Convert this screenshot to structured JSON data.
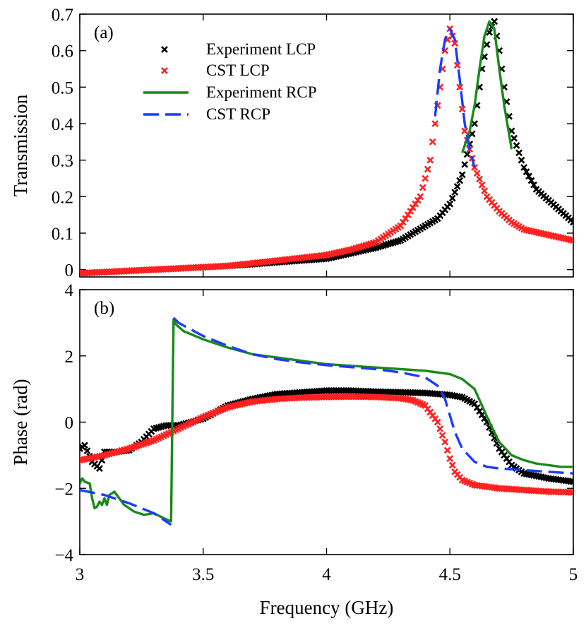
{
  "chart_data": [
    {
      "id": "a",
      "type": "scatter",
      "panel_label": "(a)",
      "ylabel": "Transmission",
      "xlabel": "",
      "xlim": [
        3,
        5
      ],
      "ylim": [
        -0.02,
        0.7
      ],
      "y_ticks": [
        0,
        0.1,
        0.2,
        0.3,
        0.4,
        0.5,
        0.6,
        0.7
      ],
      "y_tick_labels": [
        "0",
        "0.1",
        "0.2",
        "0.3",
        "0.4",
        "0.5",
        "0.6",
        "0.7"
      ],
      "x_ticks": [
        3,
        3.5,
        4,
        4.5,
        5
      ],
      "legend_position": "upper-left",
      "series": [
        {
          "name": "Experiment LCP",
          "style": "x-markers",
          "color": "#000000",
          "x": [
            3.0,
            3.3,
            3.6,
            3.8,
            4.0,
            4.1,
            4.2,
            4.3,
            4.4,
            4.45,
            4.5,
            4.55,
            4.6,
            4.63,
            4.66,
            4.68,
            4.7,
            4.72,
            4.75,
            4.8,
            4.85,
            4.9,
            4.95,
            5.0
          ],
          "y": [
            -0.01,
            0.0,
            0.01,
            0.02,
            0.03,
            0.045,
            0.06,
            0.08,
            0.12,
            0.14,
            0.18,
            0.26,
            0.4,
            0.55,
            0.65,
            0.68,
            0.6,
            0.5,
            0.38,
            0.28,
            0.22,
            0.19,
            0.16,
            0.13
          ]
        },
        {
          "name": "CST LCP",
          "style": "x-markers",
          "color": "#ff2020",
          "x": [
            3.0,
            3.3,
            3.6,
            3.8,
            4.0,
            4.1,
            4.2,
            4.3,
            4.38,
            4.42,
            4.45,
            4.48,
            4.5,
            4.52,
            4.54,
            4.56,
            4.6,
            4.65,
            4.7,
            4.75,
            4.8,
            4.9,
            5.0
          ],
          "y": [
            -0.01,
            0.0,
            0.01,
            0.025,
            0.04,
            0.055,
            0.075,
            0.12,
            0.2,
            0.3,
            0.45,
            0.6,
            0.66,
            0.62,
            0.5,
            0.38,
            0.28,
            0.2,
            0.16,
            0.13,
            0.11,
            0.095,
            0.08
          ]
        },
        {
          "name": "Experiment RCP",
          "style": "solid",
          "color": "#1a8a1a",
          "x": [
            4.55,
            4.58,
            4.6,
            4.62,
            4.64,
            4.66,
            4.68,
            4.7,
            4.72,
            4.75
          ],
          "y": [
            0.32,
            0.38,
            0.45,
            0.55,
            0.64,
            0.68,
            0.66,
            0.55,
            0.45,
            0.33
          ]
        },
        {
          "name": "CST RCP",
          "style": "dashed",
          "color": "#1c3cff",
          "x": [
            4.44,
            4.46,
            4.48,
            4.5,
            4.52,
            4.54,
            4.56,
            4.58,
            4.6
          ],
          "y": [
            0.42,
            0.55,
            0.63,
            0.66,
            0.63,
            0.52,
            0.4,
            0.33,
            0.28
          ]
        }
      ]
    },
    {
      "id": "b",
      "type": "scatter",
      "panel_label": "(b)",
      "ylabel": "Phase (rad)",
      "xlabel": "Frequency (GHz)",
      "xlim": [
        3,
        5
      ],
      "ylim": [
        -4,
        4
      ],
      "y_ticks": [
        -4,
        -2,
        0,
        2,
        4
      ],
      "y_tick_labels": [
        "−4",
        "−2",
        "0",
        "2",
        "4"
      ],
      "x_ticks": [
        3,
        3.5,
        4,
        4.5,
        5
      ],
      "x_tick_labels": [
        "3",
        "3.5",
        "4",
        "4.5",
        "5"
      ],
      "series": [
        {
          "name": "Experiment LCP",
          "style": "x-markers",
          "color": "#000000",
          "x": [
            3.0,
            3.02,
            3.05,
            3.08,
            3.1,
            3.15,
            3.2,
            3.25,
            3.3,
            3.35,
            3.4,
            3.5,
            3.6,
            3.7,
            3.8,
            3.9,
            4.0,
            4.1,
            4.2,
            4.3,
            4.4,
            4.45,
            4.5,
            4.55,
            4.6,
            4.65,
            4.7,
            4.75,
            4.8,
            4.9,
            5.0
          ],
          "y": [
            -0.8,
            -0.7,
            -1.2,
            -1.4,
            -0.9,
            -0.9,
            -0.85,
            -0.6,
            -0.2,
            -0.1,
            -0.1,
            0.1,
            0.5,
            0.7,
            0.85,
            0.9,
            0.95,
            0.95,
            0.92,
            0.9,
            0.88,
            0.85,
            0.82,
            0.75,
            0.55,
            0.0,
            -0.8,
            -1.3,
            -1.55,
            -1.7,
            -1.8
          ]
        },
        {
          "name": "CST LCP",
          "style": "x-markers",
          "color": "#ff2020",
          "x": [
            3.0,
            3.1,
            3.2,
            3.3,
            3.4,
            3.5,
            3.6,
            3.7,
            3.8,
            3.9,
            4.0,
            4.1,
            4.2,
            4.3,
            4.35,
            4.4,
            4.45,
            4.48,
            4.5,
            4.52,
            4.55,
            4.6,
            4.7,
            4.8,
            4.9,
            5.0
          ],
          "y": [
            -1.15,
            -1.0,
            -0.8,
            -0.55,
            -0.2,
            0.15,
            0.45,
            0.62,
            0.7,
            0.74,
            0.76,
            0.77,
            0.76,
            0.72,
            0.66,
            0.5,
            0.0,
            -0.6,
            -1.1,
            -1.5,
            -1.75,
            -1.9,
            -2.0,
            -2.05,
            -2.1,
            -2.12
          ]
        },
        {
          "name": "Experiment RCP",
          "style": "solid",
          "color": "#1a8a1a",
          "x": [
            3.0,
            3.01,
            3.02,
            3.04,
            3.05,
            3.06,
            3.07,
            3.08,
            3.09,
            3.1,
            3.11,
            3.12,
            3.14,
            3.18,
            3.22,
            3.26,
            3.3,
            3.34,
            3.37,
            3.38,
            3.39,
            3.42,
            3.5,
            3.6,
            3.7,
            3.8,
            3.9,
            4.0,
            4.1,
            4.2,
            4.3,
            4.4,
            4.5,
            4.55,
            4.6,
            4.63,
            4.66,
            4.7,
            4.75,
            4.8,
            4.85,
            4.9,
            4.95,
            5.0
          ],
          "y": [
            -1.85,
            -1.7,
            -1.8,
            -1.85,
            -2.3,
            -2.6,
            -2.55,
            -2.4,
            -2.5,
            -2.3,
            -2.5,
            -2.2,
            -2.1,
            -2.5,
            -2.7,
            -2.8,
            -2.75,
            -2.9,
            -3.0,
            3.1,
            2.95,
            2.75,
            2.5,
            2.25,
            2.05,
            1.95,
            1.85,
            1.75,
            1.7,
            1.65,
            1.6,
            1.55,
            1.45,
            1.3,
            1.0,
            0.5,
            0.0,
            -0.6,
            -1.0,
            -1.15,
            -1.25,
            -1.3,
            -1.35,
            -1.35
          ]
        },
        {
          "name": "CST RCP",
          "style": "dashed",
          "color": "#1c3cff",
          "x": [
            3.0,
            3.1,
            3.2,
            3.3,
            3.37,
            3.38,
            3.4,
            3.5,
            3.6,
            3.7,
            3.8,
            3.9,
            4.0,
            4.1,
            4.2,
            4.3,
            4.4,
            4.45,
            4.48,
            4.5,
            4.52,
            4.55,
            4.6,
            4.65,
            4.7,
            4.8,
            4.9,
            5.0
          ],
          "y": [
            -2.05,
            -2.2,
            -2.45,
            -2.75,
            -3.1,
            3.15,
            3.0,
            2.6,
            2.3,
            2.05,
            1.9,
            1.8,
            1.72,
            1.66,
            1.6,
            1.5,
            1.35,
            1.1,
            0.7,
            0.2,
            -0.3,
            -0.8,
            -1.2,
            -1.35,
            -1.4,
            -1.45,
            -1.5,
            -1.55
          ]
        }
      ]
    }
  ]
}
